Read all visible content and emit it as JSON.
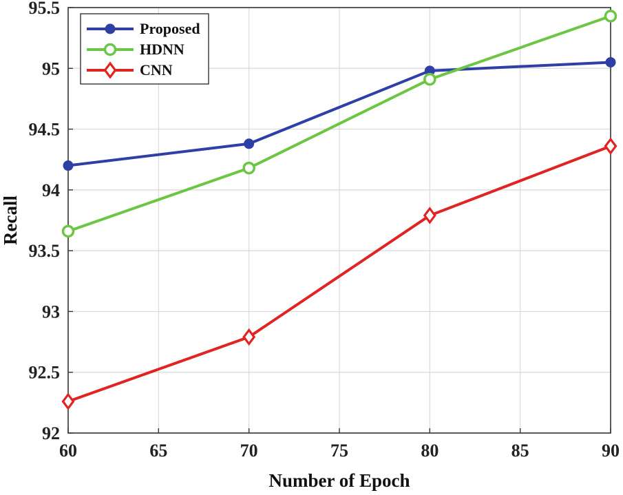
{
  "chart_data": {
    "type": "line",
    "title": "",
    "xlabel": "Number of Epoch",
    "ylabel": "Recall",
    "x": [
      60,
      70,
      80,
      90
    ],
    "xlim": [
      60,
      90
    ],
    "ylim": [
      92,
      95.5
    ],
    "xticks": [
      60,
      65,
      70,
      75,
      80,
      85,
      90
    ],
    "yticks": [
      92,
      92.5,
      93,
      93.5,
      94,
      94.5,
      95,
      95.5
    ],
    "xtick_labels": [
      "60",
      "65",
      "70",
      "75",
      "80",
      "85",
      "90"
    ],
    "ytick_labels": [
      "92",
      "92.5",
      "93",
      "93.5",
      "94",
      "94.5",
      "95",
      "95.5"
    ],
    "grid": true,
    "legend_position": "top-left",
    "series": [
      {
        "name": "Proposed",
        "values": [
          94.2,
          94.38,
          94.98,
          95.05
        ],
        "color": "#2e3fa5",
        "marker": "filled-circle"
      },
      {
        "name": "HDNN",
        "values": [
          93.66,
          94.18,
          94.91,
          95.43
        ],
        "color": "#6cc644",
        "marker": "open-circle"
      },
      {
        "name": "CNN",
        "values": [
          92.26,
          92.79,
          93.79,
          94.36
        ],
        "color": "#e02424",
        "marker": "open-diamond"
      }
    ]
  }
}
